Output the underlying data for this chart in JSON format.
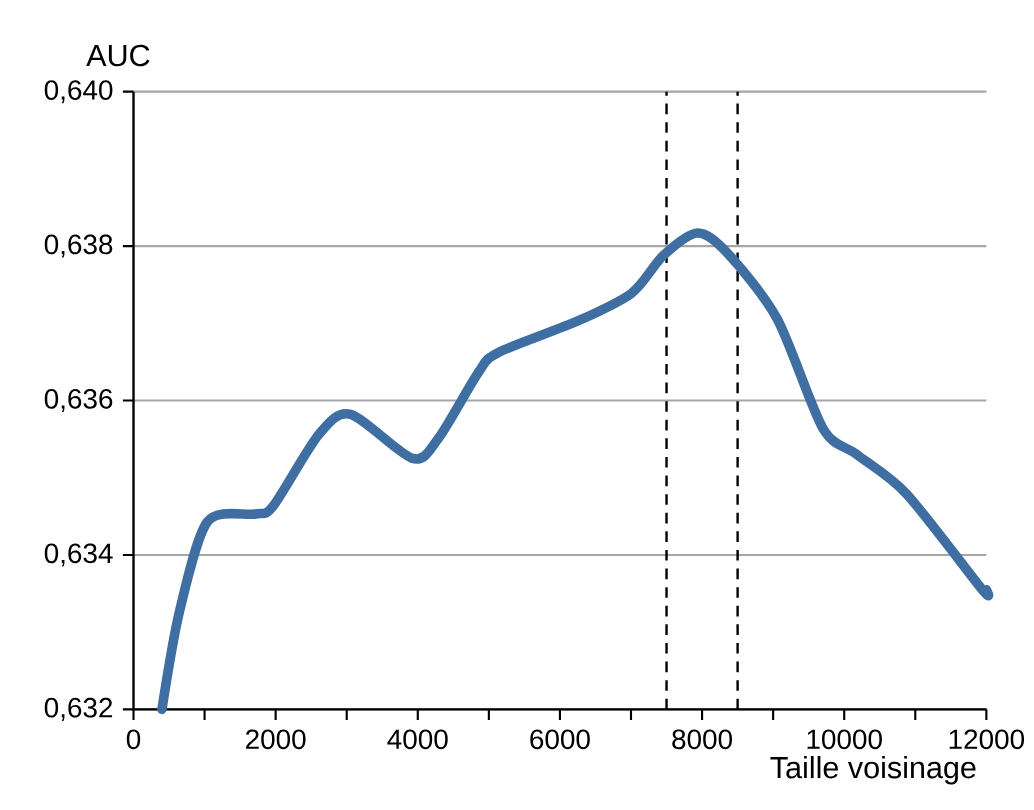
{
  "chart_data": {
    "type": "line",
    "xlabel": "Taille voisinage",
    "ylabel": "AUC",
    "x": [
      400,
      645,
      1040,
      1710,
      1963,
      2607,
      3056,
      3925,
      4290,
      4850,
      5130,
      6252,
      7009,
      7457,
      7935,
      8355,
      9055,
      9700,
      10177,
      10877,
      11943,
      12000
    ],
    "series": [
      {
        "color": "#3f6ea3",
        "values": [
          0.632,
          0.63326,
          0.63443,
          0.63453,
          0.63463,
          0.63556,
          0.63582,
          0.63525,
          0.63551,
          0.63636,
          0.63662,
          0.63703,
          0.63739,
          0.63788,
          0.63817,
          0.63791,
          0.63706,
          0.63564,
          0.6353,
          0.63479,
          0.63355,
          0.63355
        ]
      }
    ],
    "xlim": [
      0,
      12000
    ],
    "ylim": [
      0.632,
      0.64
    ],
    "xticks": [
      0,
      {
        "value": 1000,
        "label": null
      },
      2000,
      {
        "value": 3000,
        "label": null
      },
      4000,
      {
        "value": 5000,
        "label": null
      },
      6000,
      {
        "value": 7000,
        "label": null
      },
      8000,
      {
        "value": 9000,
        "label": null
      },
      10000,
      {
        "value": 11000,
        "label": null
      },
      12000
    ],
    "yticks": [
      {
        "value": 0.632,
        "label": "0,632"
      },
      {
        "value": 0.634,
        "label": "0,634"
      },
      {
        "value": 0.636,
        "label": "0,636"
      },
      {
        "value": 0.638,
        "label": "0,638"
      },
      {
        "value": 0.64,
        "label": "0,640"
      }
    ],
    "grid": "y",
    "ref_lines": [
      {
        "axis": "x",
        "value": 7500,
        "color": "#000000",
        "line_style": "dashed"
      },
      {
        "axis": "x",
        "value": 8500,
        "color": "#000000",
        "line_style": "dashed"
      }
    ]
  }
}
